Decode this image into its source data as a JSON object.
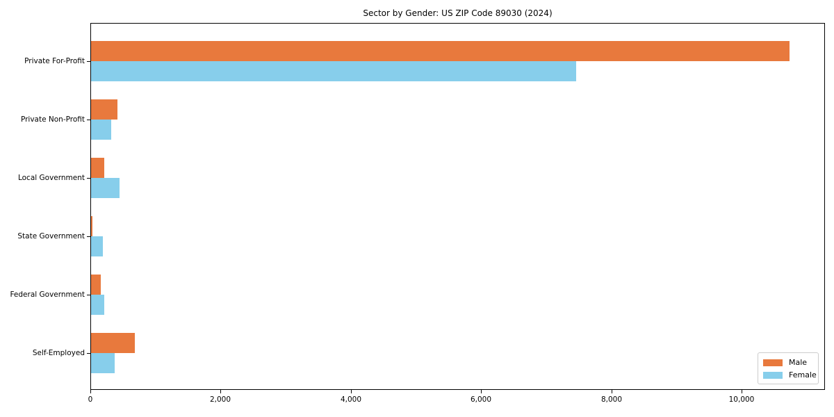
{
  "chart_data": {
    "type": "bar",
    "orientation": "horizontal",
    "title": "Sector by Gender: US ZIP Code 89030 (2024)",
    "categories": [
      "Private For-Profit",
      "Private Non-Profit",
      "Local Government",
      "State Government",
      "Federal Government",
      "Self-Employed"
    ],
    "series": [
      {
        "name": "Male",
        "color": "#e8793d",
        "values": [
          10729,
          409,
          206,
          25,
          150,
          669
        ]
      },
      {
        "name": "Female",
        "color": "#87ceeb",
        "values": [
          7452,
          313,
          434,
          185,
          200,
          366
        ]
      }
    ],
    "xlim": [
      0,
      11280
    ],
    "x_ticks": [
      0,
      2000,
      4000,
      6000,
      8000,
      10000
    ],
    "x_tick_labels": [
      "0",
      "2,000",
      "4,000",
      "6,000",
      "8,000",
      "10,000"
    ],
    "xlabel": "",
    "ylabel": "",
    "grid": false,
    "legend_position": "lower right",
    "background_color": "#ffffff",
    "spine_color": "#000000"
  }
}
